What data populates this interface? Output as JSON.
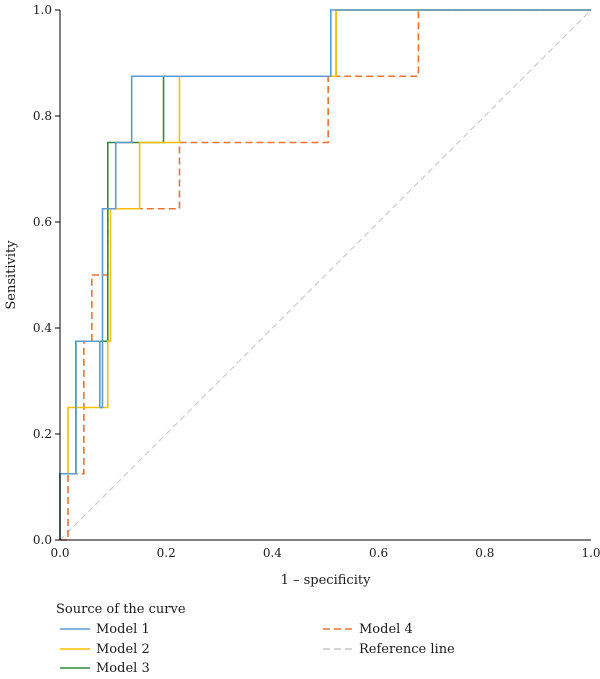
{
  "chart_data": {
    "type": "line",
    "title": "",
    "xlabel": "1 – specificity",
    "ylabel": "Sensitivity",
    "xlim": [
      0,
      1
    ],
    "ylim": [
      0,
      1
    ],
    "xticks": [
      "0.0",
      "0.2",
      "0.4",
      "0.6",
      "0.8",
      "1.0"
    ],
    "yticks": [
      "0.0",
      "0.2",
      "0.4",
      "0.6",
      "0.8",
      "1.0"
    ],
    "grid": false,
    "legend": {
      "title": "Source of the curve",
      "placement": "bottom"
    },
    "series": [
      {
        "name": "Model 1",
        "color": "#5b9bd5",
        "dash": "solid",
        "x": [
          0,
          0,
          0.03,
          0.03,
          0.075,
          0.075,
          0.08,
          0.08,
          0.105,
          0.105,
          0.135,
          0.135,
          0.51,
          0.51,
          1.0
        ],
        "y": [
          0,
          0.125,
          0.125,
          0.375,
          0.375,
          0.25,
          0.25,
          0.625,
          0.625,
          0.75,
          0.75,
          0.875,
          0.875,
          1.0,
          1.0
        ]
      },
      {
        "name": "Model 2",
        "color": "#ffc000",
        "dash": "solid",
        "x": [
          0,
          0,
          0.015,
          0.015,
          0.09,
          0.09,
          0.095,
          0.095,
          0.15,
          0.15,
          0.225,
          0.225,
          0.52,
          0.52,
          1.0
        ],
        "y": [
          0,
          0.125,
          0.125,
          0.25,
          0.25,
          0.375,
          0.375,
          0.625,
          0.625,
          0.75,
          0.75,
          0.875,
          0.875,
          1.0,
          1.0
        ]
      },
      {
        "name": "Model 3",
        "color": "#2e8b3d",
        "dash": "solid",
        "x": [
          0,
          0,
          0.03,
          0.03,
          0.09,
          0.09,
          0.195,
          0.195,
          0.52,
          0.52,
          1.0
        ],
        "y": [
          0,
          0.125,
          0.125,
          0.375,
          0.375,
          0.75,
          0.75,
          0.875,
          0.875,
          1.0,
          1.0
        ]
      },
      {
        "name": "Model 4",
        "color": "#f07030",
        "dash": "dashed",
        "x": [
          0,
          0.015,
          0.015,
          0.045,
          0.045,
          0.06,
          0.06,
          0.09,
          0.09,
          0.225,
          0.225,
          0.505,
          0.505,
          0.675,
          0.675,
          1.0
        ],
        "y": [
          0,
          0,
          0.125,
          0.125,
          0.375,
          0.375,
          0.5,
          0.5,
          0.625,
          0.625,
          0.75,
          0.75,
          0.875,
          0.875,
          1.0,
          1.0
        ]
      },
      {
        "name": "Reference line",
        "color": "#c8c8c8",
        "dash": "dashed",
        "x": [
          0,
          1
        ],
        "y": [
          0,
          1
        ]
      }
    ]
  }
}
